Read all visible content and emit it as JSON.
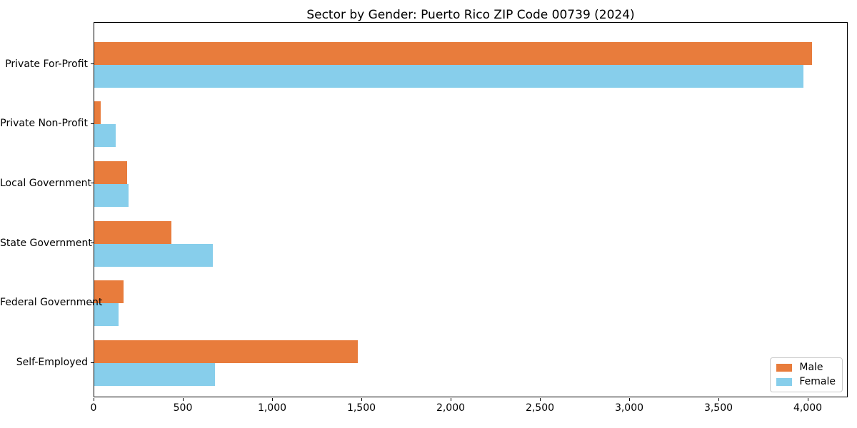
{
  "title": "Sector by Gender: Puerto Rico ZIP Code 00739 (2024)",
  "chart_data": {
    "type": "bar",
    "orientation": "horizontal",
    "title": "Sector by Gender: Puerto Rico ZIP Code 00739 (2024)",
    "categories": [
      "Private For-Profit",
      "Private Non-Profit",
      "Local Government",
      "State Government",
      "Federal Government",
      "Self-Employed"
    ],
    "series": [
      {
        "name": "Male",
        "color": "#e87c3c",
        "values": [
          4020,
          35,
          185,
          430,
          165,
          1475
        ]
      },
      {
        "name": "Female",
        "color": "#87ceeb",
        "values": [
          3970,
          120,
          190,
          665,
          135,
          675
        ]
      }
    ],
    "xlim": [
      0,
      4224
    ],
    "x_ticks": [
      0,
      500,
      1000,
      1500,
      2000,
      2500,
      3000,
      3500,
      4000
    ],
    "x_tick_labels": [
      "0",
      "500",
      "1,000",
      "1,500",
      "2,000",
      "2,500",
      "3,000",
      "3,500",
      "4,000"
    ],
    "grid": false,
    "legend_position": "lower right",
    "background": "#ffffff",
    "spine_color": "#000000"
  }
}
